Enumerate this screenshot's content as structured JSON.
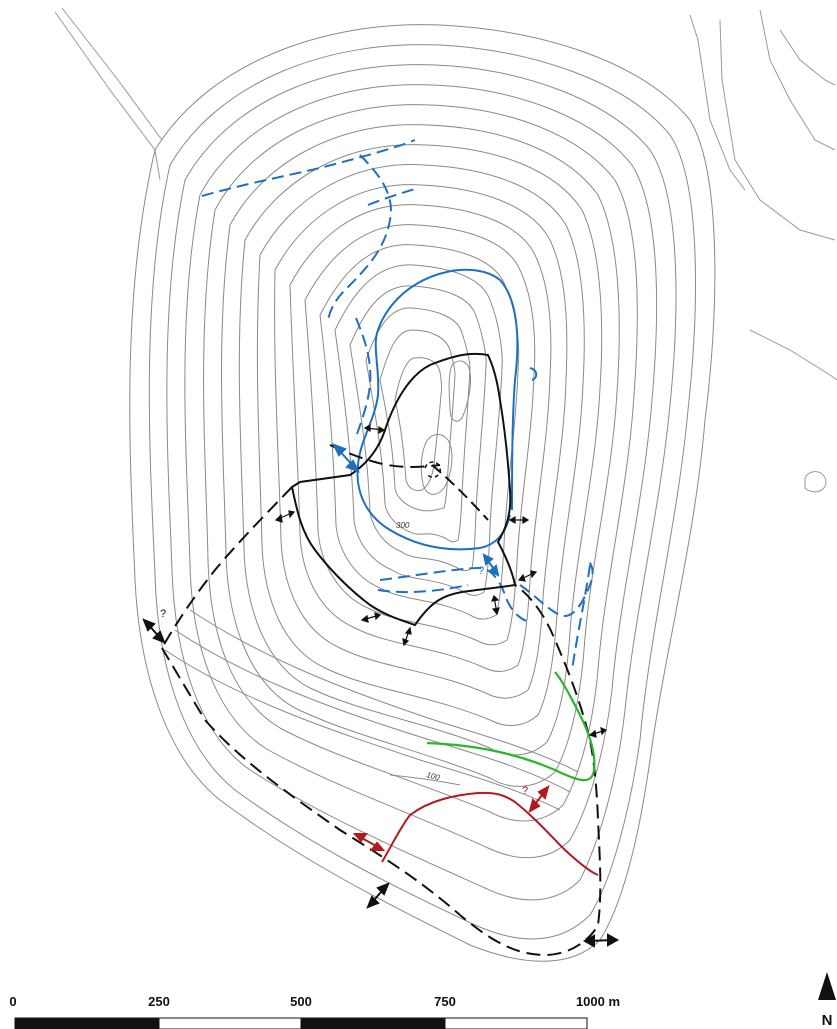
{
  "contour_labels": {
    "c300": "300",
    "c100": "100"
  },
  "question_marks": {
    "q1": "?",
    "q2": "?",
    "q3": "?"
  },
  "scale": {
    "ticks": [
      "0",
      "250",
      "500",
      "750",
      "1000 m"
    ]
  },
  "north": "N",
  "colors": {
    "contour": "#8a8a8a",
    "black_line": "#111111",
    "blue_line": "#1f6fbf",
    "green_line": "#2db52d",
    "red_line": "#b3191e"
  },
  "icons": [
    "double-arrow-icon",
    "north-arrow-icon"
  ]
}
